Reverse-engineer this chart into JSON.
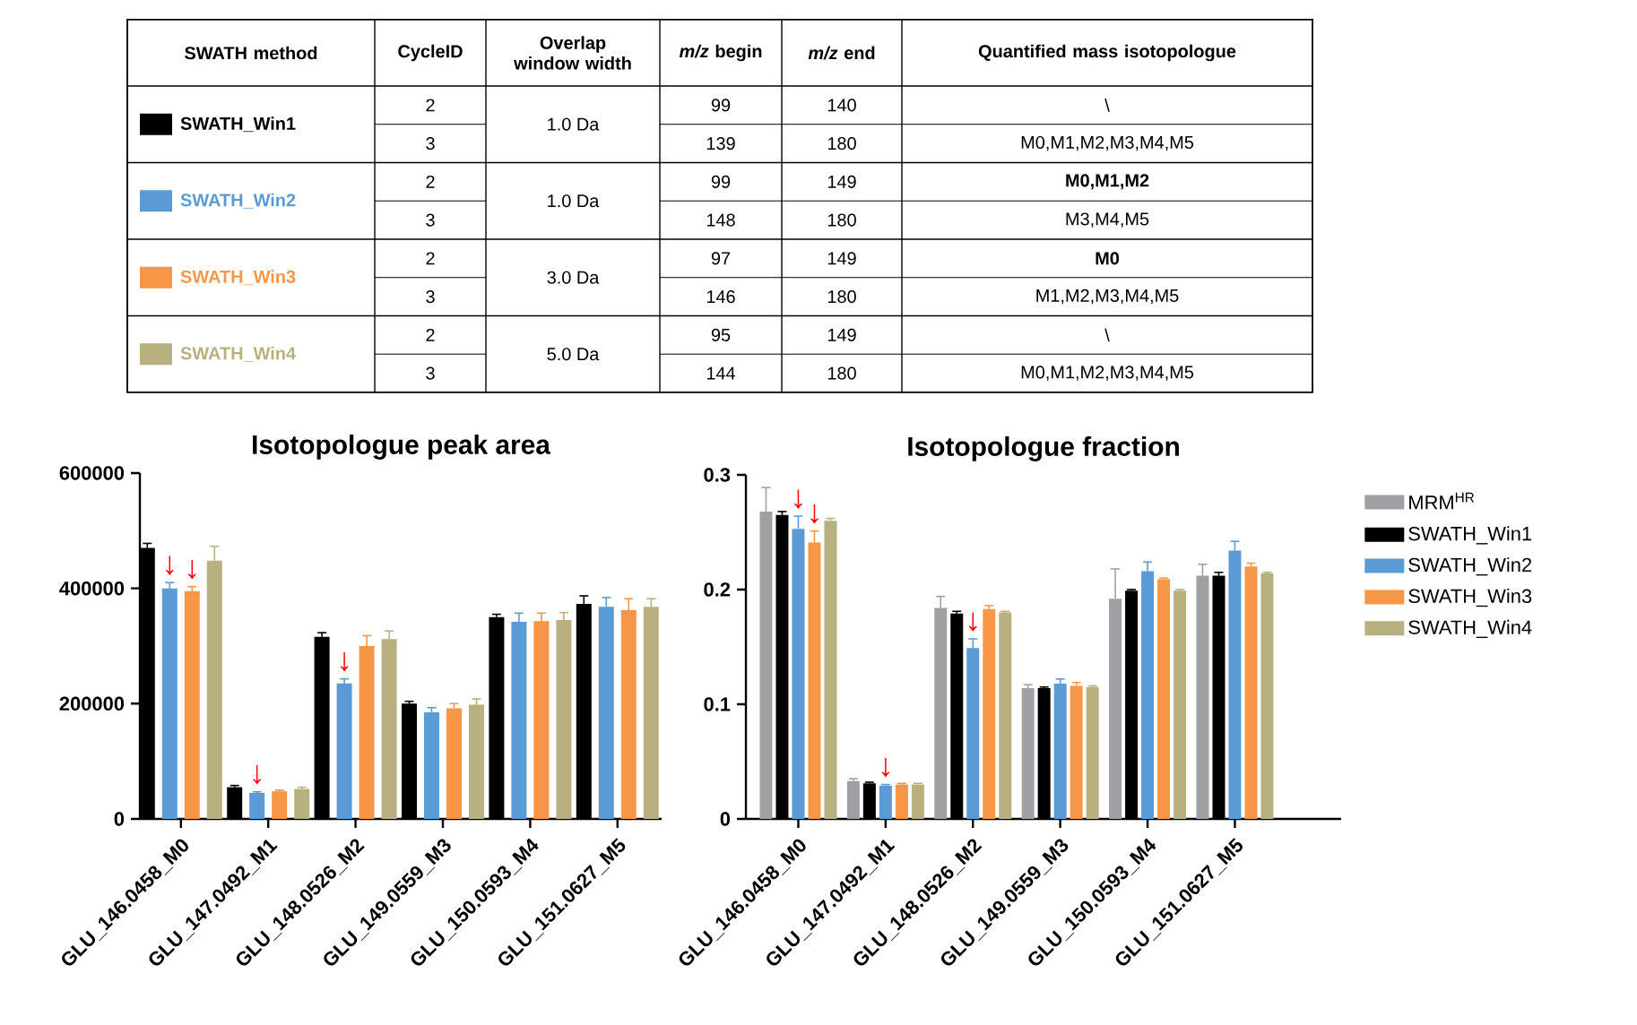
{
  "chart_data": [
    {
      "type": "other",
      "colors": [
        "#000000",
        "#5b9bd5",
        "#f79646",
        "#b8b07e"
      ],
      "annotations": [
        "SWATH method",
        "CycleID",
        "Overlap window width",
        "*m/z* begin",
        "*m/z* end",
        "Quantified mass isotopologue",
        "SWATH_Win1",
        "1.0 Da",
        "2",
        "99",
        "140",
        "\\",
        "3",
        "139",
        "180",
        "M0,M1,M2,M3,M4,M5",
        "SWATH_Win2",
        "1.0 Da",
        "2",
        "99",
        "149",
        "**M0,M1,M2**",
        "3",
        "148",
        "180",
        "M3,M4,M5",
        "SWATH_Win3",
        "3.0 Da",
        "2",
        "97",
        "149",
        "**M0**",
        "3",
        "146",
        "180",
        "M1,M2,M3,M4,M5",
        "SWATH_Win4",
        "5.0 Da",
        "2",
        "95",
        "149",
        "\\",
        "3",
        "144",
        "180",
        "M0,M1,M2,M3,M4,M5"
      ]
    },
    {
      "type": "bar",
      "title": "Isotopologue peak area",
      "categories": [
        "GLU_146.0458_M0",
        "GLU_147.0492_M1",
        "GLU_148.0526_M2",
        "GLU_149.0559_M3",
        "GLU_150.0593_M4",
        "GLU_151.0627_M5"
      ],
      "series": [
        {
          "color": "#000000",
          "values": [
            470000,
            55000,
            316000,
            200000,
            350000,
            373000
          ],
          "errors": [
            8000,
            3000,
            7000,
            4000,
            5000,
            14000
          ]
        },
        {
          "color": "#5b9bd5",
          "values": [
            400000,
            45000,
            235000,
            185000,
            342000,
            368000
          ],
          "errors": [
            10000,
            2000,
            8000,
            8000,
            15000,
            16000
          ]
        },
        {
          "color": "#f79646",
          "values": [
            395000,
            48000,
            300000,
            192000,
            343000,
            362000
          ],
          "errors": [
            8000,
            2000,
            18000,
            8000,
            14000,
            20000
          ]
        },
        {
          "color": "#b8b07e",
          "values": [
            448000,
            52000,
            312000,
            198000,
            345000,
            368000
          ],
          "errors": [
            25000,
            3000,
            14000,
            10000,
            13000,
            14000
          ]
        }
      ],
      "ylim": [
        0,
        600000
      ],
      "yticks": [
        0,
        200000,
        400000,
        600000
      ],
      "annotations": [
        {
          "text": "↓",
          "x": "GLU_146.0458_M0",
          "y": 400000
        },
        {
          "text": "↓",
          "x": "GLU_146.0458_M0",
          "y": 395000
        },
        {
          "text": "↓",
          "x": "GLU_147.0492_M1",
          "y": 45000
        },
        {
          "text": "↓",
          "x": "GLU_148.0526_M2",
          "y": 235000
        }
      ]
    },
    {
      "type": "bar",
      "title": "Isotopologue fraction",
      "legend": "right",
      "categories": [
        "GLU_146.0458_M0",
        "GLU_147.0492_M1",
        "GLU_148.0526_M2",
        "GLU_149.0559_M3",
        "GLU_150.0593_M4",
        "GLU_151.0627_M5"
      ],
      "series": [
        {
          "name": "MRM$^{HR}$",
          "color": "#a0a0a4",
          "values": [
            0.268,
            0.033,
            0.184,
            0.114,
            0.192,
            0.212
          ],
          "errors": [
            0.021,
            0.002,
            0.01,
            0.003,
            0.026,
            0.01
          ]
        },
        {
          "name": "SWATH_Win1",
          "color": "#000000",
          "values": [
            0.265,
            0.031,
            0.179,
            0.114,
            0.199,
            0.212
          ],
          "errors": [
            0.003,
            0.001,
            0.002,
            0.001,
            0.001,
            0.003
          ]
        },
        {
          "name": "SWATH_Win2",
          "color": "#5b9bd5",
          "values": [
            0.253,
            0.029,
            0.149,
            0.118,
            0.216,
            0.234
          ],
          "errors": [
            0.011,
            0.001,
            0.008,
            0.004,
            0.008,
            0.008
          ]
        },
        {
          "name": "SWATH_Win3",
          "color": "#f79646",
          "values": [
            0.241,
            0.03,
            0.183,
            0.116,
            0.209,
            0.22
          ],
          "errors": [
            0.01,
            0.001,
            0.003,
            0.003,
            0.001,
            0.003
          ]
        },
        {
          "name": "SWATH_Win4",
          "color": "#b8b07e",
          "values": [
            0.26,
            0.03,
            0.18,
            0.115,
            0.199,
            0.214
          ],
          "errors": [
            0.002,
            0.001,
            0.001,
            0.001,
            0.001,
            0.001
          ]
        }
      ],
      "ylim": [
        0,
        0.3
      ],
      "yticks": [
        0,
        0.1,
        0.2,
        0.3
      ],
      "annotations": [
        {
          "text": "↓",
          "x": "GLU_146.0458_M0",
          "y": 0.253
        },
        {
          "text": "↓",
          "x": "GLU_146.0458_M0",
          "y": 0.241
        },
        {
          "text": "↓",
          "x": "GLU_147.0492_M1",
          "y": 0.029
        },
        {
          "text": "↓",
          "x": "GLU_148.0526_M2",
          "y": 0.149
        }
      ]
    }
  ]
}
